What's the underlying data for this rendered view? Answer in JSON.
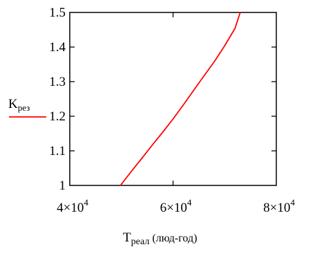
{
  "chart_data": {
    "type": "line",
    "title": "",
    "xlabel": {
      "main": "T",
      "sub": "реал",
      "suffix": " (люд-год)"
    },
    "ylabel": {
      "main": "K",
      "sub": "рез"
    },
    "xlim": [
      40000,
      80000
    ],
    "ylim": [
      1.0,
      1.5
    ],
    "xticks": [
      {
        "value": 40000,
        "mantissa": "4×10",
        "exp": "4"
      },
      {
        "value": 60000,
        "mantissa": "6×10",
        "exp": "4"
      },
      {
        "value": 80000,
        "mantissa": "8×10",
        "exp": "4"
      }
    ],
    "yticks": [
      {
        "value": 1.0,
        "label": "1"
      },
      {
        "value": 1.1,
        "label": "1.1"
      },
      {
        "value": 1.2,
        "label": "1.2"
      },
      {
        "value": 1.3,
        "label": "1.3"
      },
      {
        "value": 1.4,
        "label": "1.4"
      },
      {
        "value": 1.5,
        "label": "1.5"
      }
    ],
    "grid": false,
    "legend_position": "left",
    "series": [
      {
        "color": "#ff0000",
        "x": [
          49800,
          52000,
          54000,
          56000,
          58000,
          60000,
          62000,
          64000,
          66000,
          68000,
          70000,
          72000,
          73000
        ],
        "y": [
          1.0,
          1.042,
          1.079,
          1.117,
          1.154,
          1.192,
          1.233,
          1.275,
          1.317,
          1.358,
          1.404,
          1.454,
          1.5
        ]
      }
    ]
  }
}
